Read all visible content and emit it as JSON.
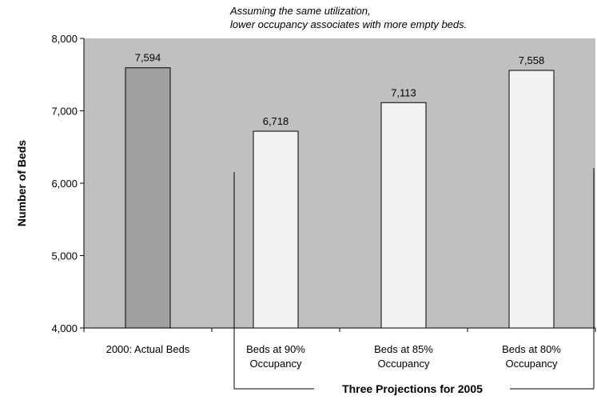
{
  "chart_data": {
    "type": "bar",
    "title": "",
    "annotation": [
      "Assuming the same utilization,",
      "lower occupancy associates with more empty beds."
    ],
    "ylabel": "Number of Beds",
    "xlabel": "",
    "ylim": [
      4000,
      8000
    ],
    "yticks": [
      4000,
      5000,
      6000,
      7000,
      8000
    ],
    "ytick_labels": [
      "4,000",
      "5,000",
      "6,000",
      "7,000",
      "8,000"
    ],
    "grid": false,
    "categories": [
      [
        "2000: Actual Beds"
      ],
      [
        "Beds at 90%",
        "Occupancy"
      ],
      [
        "Beds at 85%",
        "Occupancy"
      ],
      [
        "Beds at 80%",
        "Occupancy"
      ]
    ],
    "values": [
      7594,
      6718,
      7113,
      7558
    ],
    "value_labels": [
      "7,594",
      "6,718",
      "7,113",
      "7,558"
    ],
    "bar_colors": [
      "#a0a0a0",
      "#f2f2f2",
      "#f2f2f2",
      "#f2f2f2"
    ],
    "plot_background": "#c0c0c0",
    "group_label": "Three Projections for 2005"
  }
}
